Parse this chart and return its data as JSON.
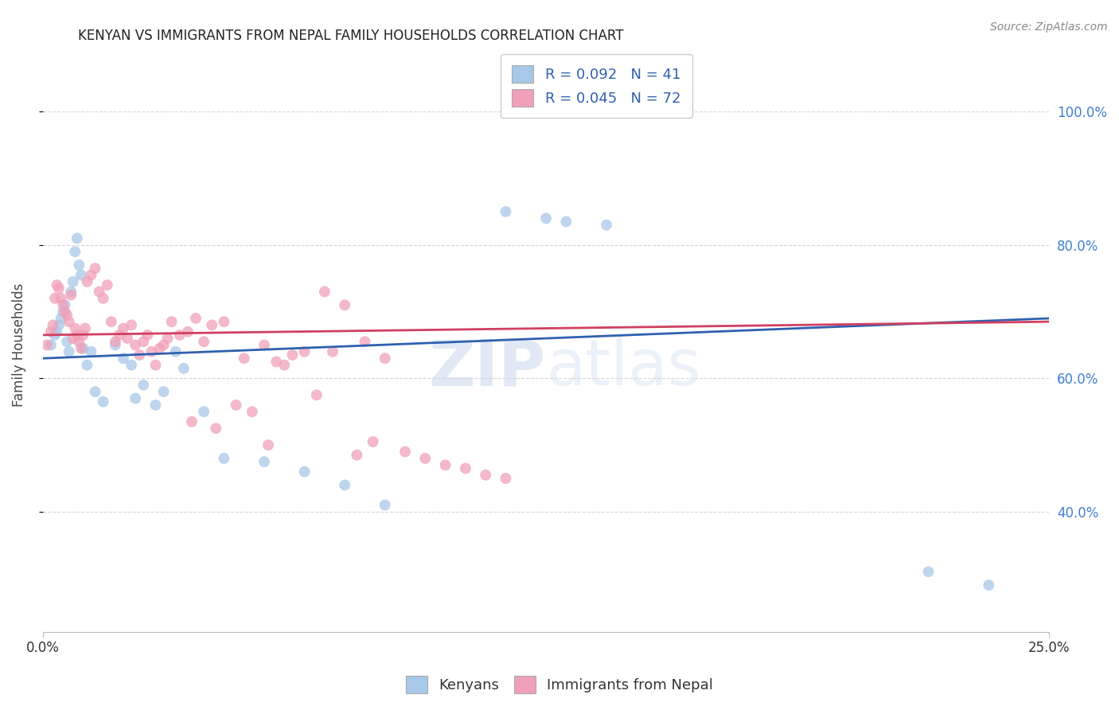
{
  "title": "KENYAN VS IMMIGRANTS FROM NEPAL FAMILY HOUSEHOLDS CORRELATION CHART",
  "source": "Source: ZipAtlas.com",
  "ylabel": "Family Households",
  "xlim": [
    0.0,
    25.0
  ],
  "ylim": [
    22.0,
    108.0
  ],
  "kenyan_R": 0.092,
  "kenyan_N": 41,
  "nepal_R": 0.045,
  "nepal_N": 72,
  "kenyan_color": "#a8c8e8",
  "kenyan_line_color": "#3060b0",
  "nepal_color": "#f0a0b8",
  "nepal_line_color": "#d04060",
  "kenyan_x": [
    0.2,
    0.3,
    0.35,
    0.4,
    0.45,
    0.5,
    0.55,
    0.6,
    0.65,
    0.7,
    0.75,
    0.8,
    0.85,
    0.9,
    0.95,
    1.0,
    1.1,
    1.2,
    1.3,
    1.5,
    1.8,
    2.0,
    2.3,
    2.5,
    2.8,
    3.0,
    3.3,
    3.5,
    4.0,
    4.5,
    5.5,
    6.5,
    2.2,
    7.5,
    8.5,
    22.0,
    23.5,
    11.5,
    12.5,
    13.0,
    14.0
  ],
  "kenyan_y": [
    65.0,
    66.5,
    67.0,
    68.0,
    69.0,
    70.0,
    71.0,
    65.5,
    64.0,
    73.0,
    74.5,
    79.0,
    81.0,
    77.0,
    75.5,
    64.5,
    62.0,
    64.0,
    58.0,
    56.5,
    65.0,
    63.0,
    57.0,
    59.0,
    56.0,
    58.0,
    64.0,
    61.5,
    55.0,
    48.0,
    47.5,
    46.0,
    62.0,
    44.0,
    41.0,
    31.0,
    29.0,
    85.0,
    84.0,
    83.5,
    83.0
  ],
  "nepal_x": [
    0.1,
    0.2,
    0.25,
    0.3,
    0.35,
    0.4,
    0.45,
    0.5,
    0.55,
    0.6,
    0.65,
    0.7,
    0.75,
    0.8,
    0.85,
    0.9,
    0.95,
    1.0,
    1.05,
    1.1,
    1.2,
    1.3,
    1.4,
    1.5,
    1.6,
    1.7,
    1.8,
    1.9,
    2.0,
    2.1,
    2.2,
    2.3,
    2.4,
    2.5,
    2.6,
    2.7,
    2.8,
    2.9,
    3.0,
    3.2,
    3.4,
    3.6,
    3.8,
    4.0,
    4.2,
    4.5,
    5.0,
    5.5,
    6.0,
    6.5,
    7.0,
    7.5,
    8.5,
    3.1,
    5.8,
    6.2,
    7.2,
    4.8,
    5.2,
    6.8,
    4.3,
    3.7,
    8.0,
    5.6,
    9.0,
    7.8,
    8.2,
    9.5,
    10.0,
    10.5,
    11.0,
    11.5
  ],
  "nepal_y": [
    65.0,
    67.0,
    68.0,
    72.0,
    74.0,
    73.5,
    72.0,
    71.0,
    70.0,
    69.5,
    68.5,
    72.5,
    66.0,
    67.5,
    66.5,
    65.5,
    64.5,
    66.5,
    67.5,
    74.5,
    75.5,
    76.5,
    73.0,
    72.0,
    74.0,
    68.5,
    65.5,
    66.5,
    67.5,
    66.0,
    68.0,
    65.0,
    63.5,
    65.5,
    66.5,
    64.0,
    62.0,
    64.5,
    65.0,
    68.5,
    66.5,
    67.0,
    69.0,
    65.5,
    68.0,
    68.5,
    63.0,
    65.0,
    62.0,
    64.0,
    73.0,
    71.0,
    63.0,
    66.0,
    62.5,
    63.5,
    64.0,
    56.0,
    55.0,
    57.5,
    52.5,
    53.5,
    65.5,
    50.0,
    49.0,
    48.5,
    50.5,
    48.0,
    47.0,
    46.5,
    45.5,
    45.0
  ],
  "watermark_zip": "ZIP",
  "watermark_atlas": "atlas",
  "legend_kenyan_label": "R = 0.092   N = 41",
  "legend_nepal_label": "R = 0.045   N = 72",
  "legend_bottom_kenyan": "Kenyans",
  "legend_bottom_nepal": "Immigrants from Nepal",
  "background_color": "#ffffff",
  "grid_color": "#cccccc",
  "ytick_color": "#4080d0",
  "title_color": "#222222",
  "marker_size": 100
}
